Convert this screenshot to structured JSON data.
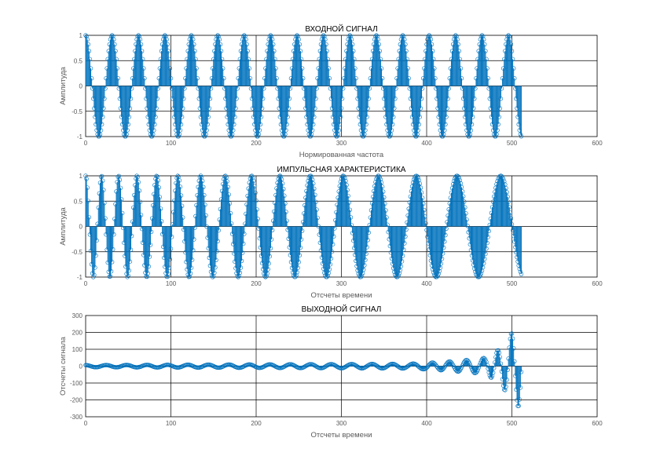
{
  "colors": {
    "stem": "#0072BD",
    "grid": "#000000",
    "background": "#ffffff",
    "tick_text": "#5a5a5a"
  },
  "chart_data": [
    {
      "type": "stem",
      "title": "ВХОДНОЙ СИГНАЛ",
      "xlabel": "Нормированная частота",
      "ylabel": "Амплитуда",
      "xlim": [
        0,
        600
      ],
      "ylim": [
        -1,
        1
      ],
      "xticks": [
        "0",
        "100",
        "200",
        "300",
        "400",
        "500",
        "600"
      ],
      "yticks": [
        "1",
        "0.5",
        "0",
        "-0.5",
        "-1"
      ],
      "grid": true,
      "marker": "circle",
      "series": [
        {
          "signal": "sinusoid",
          "n": [
            0,
            511
          ],
          "amplitude": 1,
          "approx_period_samples": 31
        }
      ]
    },
    {
      "type": "stem",
      "title": "ИМПУЛЬСНАЯ ХАРАКТЕРИСТИКА",
      "xlabel": "Отсчеты времени",
      "ylabel": "Амплитуда",
      "xlim": [
        0,
        600
      ],
      "ylim": [
        -1,
        1
      ],
      "xticks": [
        "0",
        "100",
        "200",
        "300",
        "400",
        "500",
        "600"
      ],
      "yticks": [
        "1",
        "0.5",
        "0",
        "-0.5",
        "-1"
      ],
      "grid": true,
      "marker": "circle",
      "series": [
        {
          "signal": "chirp",
          "n": [
            0,
            511
          ],
          "amplitude": 1,
          "approx_period_start": 18,
          "approx_period_end": 55
        }
      ]
    },
    {
      "type": "stem",
      "title": "ВЫХОДНОЙ СИГНАЛ",
      "xlabel": "Отсчеты времени",
      "ylabel": "Отсчеты сигнала",
      "xlim": [
        0,
        600
      ],
      "ylim": [
        -300,
        300
      ],
      "xticks": [
        "0",
        "100",
        "200",
        "300",
        "400",
        "500",
        "600"
      ],
      "yticks": [
        "300",
        "200",
        "100",
        "0",
        "-100",
        "-200",
        "-300"
      ],
      "grid": true,
      "marker": "circle",
      "series": [
        {
          "signal": "convolution_output",
          "n": [
            0,
            511
          ],
          "envelope_points": [
            [
              0,
              6
            ],
            [
              200,
              10
            ],
            [
              380,
              14
            ],
            [
              420,
              25
            ],
            [
              455,
              40
            ],
            [
              470,
              50
            ],
            [
              485,
              100
            ],
            [
              500,
              200
            ],
            [
              511,
              260
            ]
          ]
        }
      ]
    }
  ]
}
